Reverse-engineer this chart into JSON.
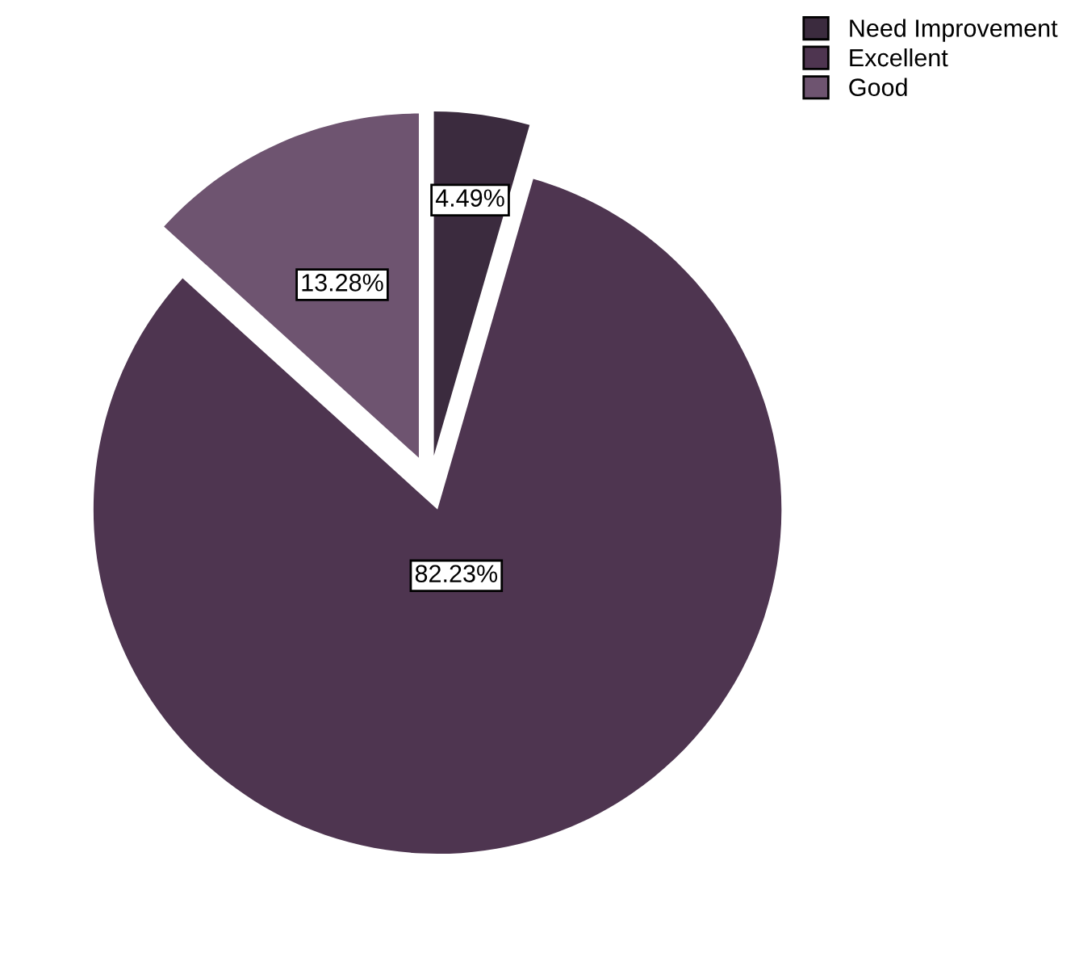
{
  "chart_data": {
    "type": "pie",
    "categories": [
      "Need Improvement",
      "Excellent",
      "Good"
    ],
    "values": [
      4.49,
      82.23,
      13.28
    ],
    "colors": [
      "#3b2b3e",
      "#4e3550",
      "#6e5470"
    ],
    "value_labels": [
      "4.49%",
      "82.23%",
      "13.28%"
    ],
    "legend": "top right"
  }
}
